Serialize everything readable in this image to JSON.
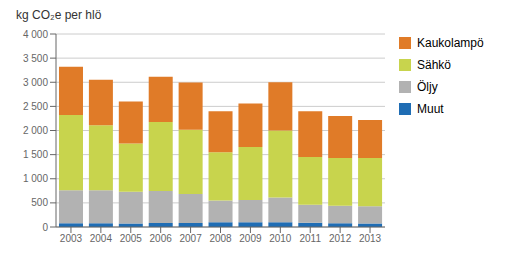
{
  "chart_data": {
    "type": "bar",
    "stacked": true,
    "ylabel": "kg CO₂e per hlö",
    "categories": [
      "2003",
      "2004",
      "2005",
      "2006",
      "2007",
      "2008",
      "2009",
      "2010",
      "2011",
      "2012",
      "2013"
    ],
    "series": [
      {
        "name": "Muut",
        "color": "#1f6db4",
        "values": [
          80,
          80,
          70,
          85,
          85,
          100,
          100,
          100,
          90,
          80,
          70
        ]
      },
      {
        "name": "Öljy",
        "color": "#b2b2b2",
        "values": [
          680,
          680,
          660,
          660,
          600,
          450,
          460,
          510,
          370,
          360,
          360
        ]
      },
      {
        "name": "Sähkö",
        "color": "#c8d44d",
        "values": [
          1560,
          1350,
          1000,
          1430,
          1330,
          1000,
          1100,
          1390,
          990,
          990,
          1000
        ]
      },
      {
        "name": "Kaukolampö",
        "color": "#e07b28",
        "values": [
          1000,
          940,
          870,
          940,
          980,
          850,
          900,
          1000,
          950,
          870,
          790
        ]
      }
    ],
    "ylim": [
      0,
      4000
    ],
    "yticks": [
      0,
      500,
      {
        "value": 1000,
        "label": "1 000"
      },
      {
        "value": 1500,
        "label": "1 500"
      },
      {
        "value": 2000,
        "label": "2 000"
      },
      {
        "value": 2500,
        "label": "2 500"
      },
      {
        "value": 3000,
        "label": "3 000"
      },
      {
        "value": 3500,
        "label": "3 500"
      },
      {
        "value": 4000,
        "label": "4 000"
      }
    ],
    "grid": true,
    "legend": "right"
  }
}
